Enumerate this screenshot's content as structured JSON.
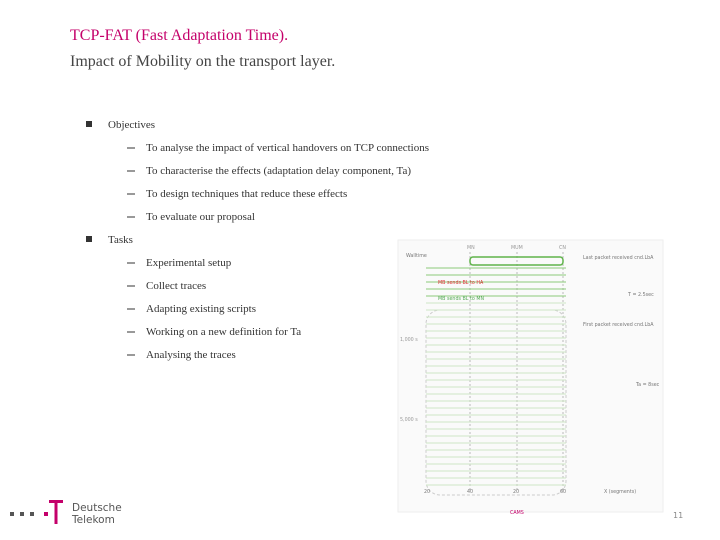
{
  "title": {
    "line1": "TCP-FAT  (Fast Adaptation Time).",
    "line2": "Impact of Mobility on the transport layer."
  },
  "sections": [
    {
      "heading": "Objectives",
      "items": [
        "To analyse the impact of vertical handovers on TCP connections",
        "To characterise the effects (adaptation delay component, Ta)",
        "To design techniques that reduce these effects",
        "To evaluate our proposal"
      ]
    },
    {
      "heading": "Tasks",
      "items": [
        "Experimental setup",
        "Collect traces",
        "Adapting existing scripts",
        "Working on a new definition for Ta",
        "Analysing the traces"
      ]
    }
  ],
  "figure": {
    "labels": [
      "Walltime",
      "MN",
      "MUM",
      "CN",
      "Last packet received cnd.LbA",
      "T = 2.5sec",
      "MB sends BL to HA",
      "MB sends BL to MN",
      "First packet received cnd.LbA",
      "Ta = 8sec",
      "1,000 s",
      "5,000 s",
      "20",
      "40",
      "20",
      "60",
      "X (segments)",
      "CAMS"
    ]
  },
  "logo": {
    "line1": "Deutsche",
    "line2": "Telekom"
  },
  "page_number": "11"
}
